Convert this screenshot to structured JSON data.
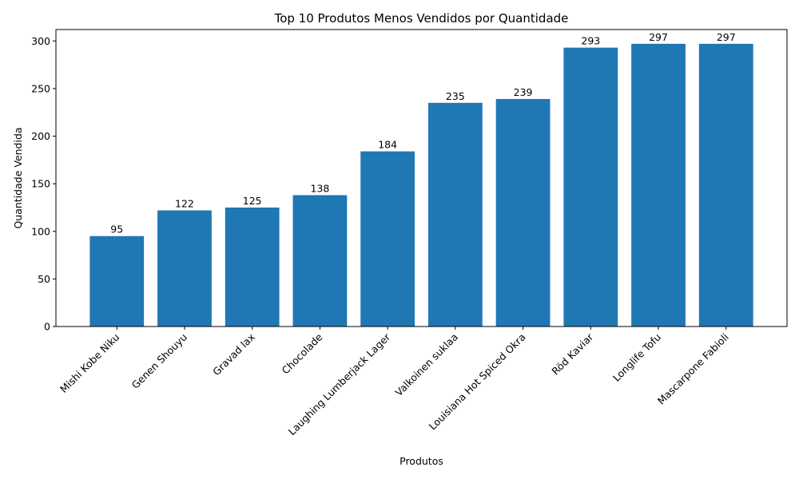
{
  "chart_data": {
    "type": "bar",
    "title": "Top 10 Produtos Menos Vendidos por Quantidade",
    "xlabel": "Produtos",
    "ylabel": "Quantidade Vendida",
    "categories": [
      "Mishi Kobe Niku",
      "Genen Shouyu",
      "Gravad lax",
      "Chocolade",
      "Laughing Lumberjack Lager",
      "Valkoinen suklaa",
      "Louisiana Hot Spiced Okra",
      "Röd Kaviar",
      "Longlife Tofu",
      "Mascarpone Fabioli"
    ],
    "values": [
      95,
      122,
      125,
      138,
      184,
      235,
      239,
      293,
      297,
      297
    ],
    "ylim": [
      0,
      312
    ],
    "yticks": [
      0,
      50,
      100,
      150,
      200,
      250,
      300
    ],
    "grid": false,
    "bar_color": "#1f77b4",
    "data_labels": true
  }
}
